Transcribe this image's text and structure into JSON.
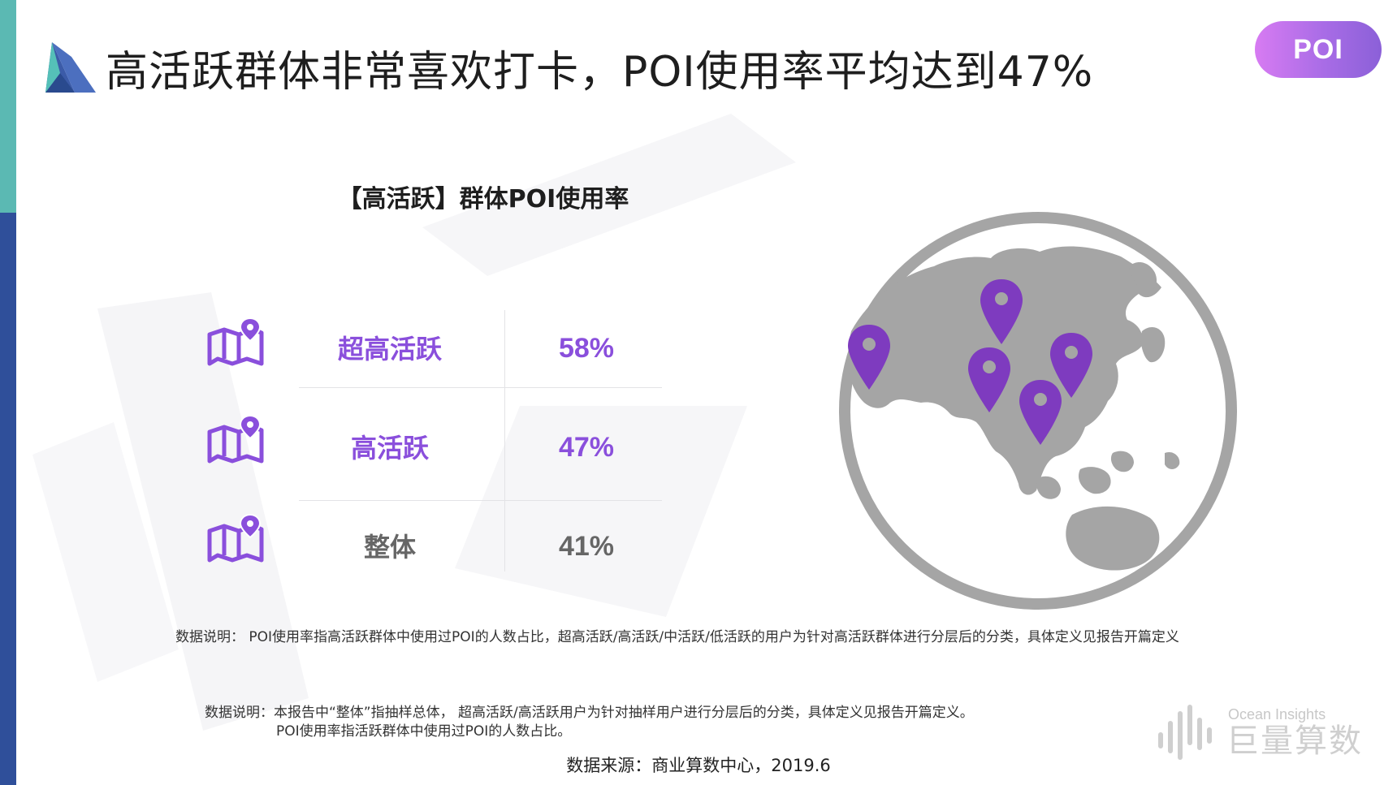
{
  "header": {
    "title": "高活跃群体非常喜欢打卡，POI使用率平均达到47%",
    "tag": "POI"
  },
  "panel": {
    "title": "【高活跃】群体POI使用率",
    "rows": [
      {
        "label": "超高活跃",
        "value": "58%",
        "color": "#8a4fdc"
      },
      {
        "label": "高活跃",
        "value": "47%",
        "color": "#8a4fdc"
      },
      {
        "label": "整体",
        "value": "41%",
        "color": "#666666"
      }
    ]
  },
  "notes": {
    "note1": "数据说明： POI使用率指高活跃群体中使用过POI的人数占比，超高活跃/高活跃/中活跃/低活跃的用户为针对高活跃群体进行分层后的分类，具体定义见报告开篇定义",
    "note2_line1": "数据说明：本报告中“整体”指抽样总体， 超高活跃/高活跃用户为针对抽样用户进行分层后的分类，具体定义见报告开篇定义。",
    "note2_line2": "POI使用率指活跃群体中使用过POI的人数占比。",
    "source": "数据来源：商业算数中心，2019.6"
  },
  "brand": {
    "en": "Ocean Insights",
    "cn": "巨量算数"
  },
  "icons": {
    "logo": "triangle-logo-icon",
    "row": "map-pin-icon",
    "globe": "globe-icon",
    "marker": "location-marker-icon",
    "brand": "soundwave-icon"
  },
  "colors": {
    "accent_purple": "#8a4fdc",
    "globe_gray": "#a5a5a5",
    "teal_strip": "#5bb9b3",
    "navy_strip": "#2f4f9a"
  }
}
